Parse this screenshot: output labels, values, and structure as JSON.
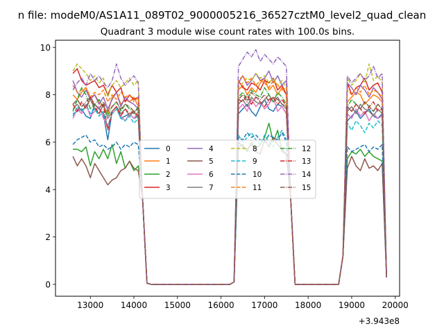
{
  "suptitle": "n file: modeM0/AS1A11_089T02_9000005216_36527cztM0_level2_quad_clean",
  "chart_data": {
    "type": "line",
    "title": "Quadrant 3 module wise count rates with 100.0s bins.",
    "xlabel": "",
    "ylabel": "",
    "x_offset_label": "+3.943e8",
    "xlim": [
      12200,
      20100
    ],
    "ylim": [
      -0.5,
      10.3
    ],
    "xticks": [
      13000,
      14000,
      15000,
      16000,
      17000,
      18000,
      19000,
      20000
    ],
    "xtick_labels": [
      "13000",
      "14000",
      "15000",
      "16000",
      "17000",
      "18000",
      "19000",
      "20000"
    ],
    "yticks": [
      0,
      2,
      4,
      6,
      8,
      10
    ],
    "ytick_labels": [
      "0",
      "2",
      "4",
      "6",
      "8",
      "10"
    ],
    "grid": false,
    "legend": {
      "placement": "center",
      "columns": 4
    },
    "segments": [
      {
        "x_start": 12600,
        "x_end": 14100
      },
      {
        "x_start": 16400,
        "x_end": 17500
      },
      {
        "x_start": 18900,
        "x_end": 19700
      }
    ],
    "gap_points": [
      14200,
      14300,
      14400,
      16200,
      16300,
      17600,
      17700,
      18700,
      18800,
      19800
    ],
    "gap_values": [
      3.6,
      0.05,
      0,
      0,
      0.1,
      3.6,
      0,
      0,
      1.2,
      0.3
    ],
    "series": [
      {
        "name": "0",
        "color": "#1f77b4",
        "dash": "solid",
        "values": [
          [
            7.2,
            7.3,
            7.4,
            7.1,
            7.0,
            7.6,
            7.4,
            7.2,
            6.1,
            7.3,
            7.5,
            7.0,
            7.1,
            7.2,
            7.0,
            7.1
          ],
          [
            7.2,
            7.4,
            7.6,
            7.3,
            7.1,
            7.5,
            7.8,
            7.4,
            7.3,
            7.6,
            7.5,
            7.2
          ],
          [
            6.9,
            7.1,
            7.3,
            7.0,
            7.2,
            7.4,
            7.1,
            7.0,
            7.2
          ]
        ]
      },
      {
        "name": "1",
        "color": "#ff7f0e",
        "dash": "solid",
        "values": [
          [
            8.0,
            7.8,
            8.1,
            8.3,
            7.9,
            8.0,
            7.7,
            7.5,
            7.2,
            7.9,
            8.1,
            7.6,
            7.8,
            7.7,
            7.9,
            7.5
          ],
          [
            8.2,
            8.4,
            8.0,
            8.3,
            8.1,
            8.5,
            8.7,
            8.2,
            8.4,
            8.0,
            8.3,
            8.0
          ],
          [
            7.7,
            7.9,
            8.1,
            8.0,
            7.6,
            7.8,
            8.0,
            7.9,
            7.7
          ]
        ]
      },
      {
        "name": "2",
        "color": "#2ca02c",
        "dash": "solid",
        "values": [
          [
            5.7,
            5.7,
            5.6,
            5.8,
            5.0,
            5.6,
            5.3,
            5.7,
            5.3,
            5.9,
            5.1,
            5.6,
            4.9,
            5.2,
            4.8,
            5.0
          ],
          [
            5.8,
            5.9,
            5.6,
            6.0,
            5.7,
            5.9,
            6.2,
            6.8,
            6.0,
            6.5,
            5.6,
            5.5
          ],
          [
            5.3,
            5.6,
            5.5,
            5.7,
            5.4,
            5.6,
            5.4,
            5.3,
            5.2
          ]
        ]
      },
      {
        "name": "3",
        "color": "#d62728",
        "dash": "solid",
        "values": [
          [
            8.9,
            9.1,
            8.6,
            8.4,
            8.5,
            8.6,
            8.3,
            8.4,
            8.0,
            8.4,
            8.1,
            8.3,
            7.7,
            8.0,
            7.8,
            7.9
          ],
          [
            8.6,
            8.3,
            8.2,
            8.5,
            8.4,
            8.2,
            8.6,
            8.5,
            8.7,
            8.2,
            8.4,
            8.0
          ],
          [
            8.5,
            8.0,
            8.3,
            8.4,
            8.7,
            8.2,
            8.4,
            8.5,
            8.1
          ]
        ]
      },
      {
        "name": "4",
        "color": "#9467bd",
        "dash": "solid",
        "values": [
          [
            8.6,
            8.1,
            7.9,
            8.2,
            7.8,
            8.0,
            7.6,
            7.9,
            7.4,
            7.8,
            8.1,
            7.5,
            7.9,
            7.7,
            7.6,
            7.4
          ],
          [
            8.5,
            8.8,
            8.4,
            8.6,
            8.9,
            8.6,
            8.7,
            9.0,
            8.5,
            8.8,
            8.4,
            8.6
          ],
          [
            8.5,
            8.3,
            8.0,
            8.4,
            8.2,
            7.9,
            8.3,
            8.1,
            7.8
          ]
        ]
      },
      {
        "name": "5",
        "color": "#8c564b",
        "dash": "solid",
        "values": [
          [
            5.4,
            5.0,
            5.3,
            5.0,
            4.5,
            5.1,
            4.8,
            4.5,
            4.2,
            4.4,
            4.5,
            4.8,
            4.9,
            5.2,
            4.9,
            4.8
          ],
          [
            6.0,
            5.8,
            5.7,
            5.9,
            5.6,
            5.5,
            6.1,
            5.8,
            6.2,
            5.9,
            5.7,
            5.5
          ],
          [
            4.9,
            5.4,
            5.0,
            4.8,
            5.3,
            4.9,
            5.0,
            4.8,
            5.1
          ]
        ]
      },
      {
        "name": "6",
        "color": "#e377c2",
        "dash": "solid",
        "values": [
          [
            7.0,
            7.4,
            7.2,
            7.6,
            7.1,
            7.3,
            7.5,
            7.0,
            6.7,
            7.2,
            7.4,
            7.1,
            6.9,
            7.2,
            7.0,
            7.3
          ],
          [
            7.4,
            7.6,
            7.3,
            7.8,
            7.5,
            7.7,
            7.4,
            7.6,
            7.9,
            7.3,
            7.5,
            7.2
          ],
          [
            7.2,
            7.0,
            7.4,
            7.1,
            7.3,
            6.9,
            7.2,
            7.0,
            7.1
          ]
        ]
      },
      {
        "name": "7",
        "color": "#7f7f7f",
        "dash": "solid",
        "values": [
          [
            7.4,
            7.6,
            7.3,
            7.5,
            7.8,
            7.4,
            7.2,
            7.6,
            7.0,
            7.3,
            7.5,
            7.2,
            7.4,
            7.1,
            7.3,
            7.0
          ],
          [
            7.6,
            7.8,
            7.5,
            7.9,
            7.7,
            7.6,
            7.8,
            8.0,
            7.7,
            7.9,
            7.6,
            7.4
          ],
          [
            7.3,
            7.5,
            7.2,
            7.6,
            7.4,
            7.3,
            7.1,
            7.4,
            7.2
          ]
        ]
      },
      {
        "name": "8",
        "color": "#bcbd22",
        "dash": "dashed",
        "values": [
          [
            9.0,
            9.3,
            9.1,
            8.9,
            8.6,
            8.8,
            8.5,
            8.7,
            7.9,
            8.4,
            8.6,
            8.3,
            8.5,
            8.7,
            8.4,
            8.6
          ],
          [
            8.3,
            8.5,
            8.7,
            8.6,
            8.9,
            8.7,
            8.8,
            8.5,
            8.7,
            8.4,
            8.6,
            8.3
          ],
          [
            8.7,
            8.4,
            8.6,
            8.9,
            8.5,
            9.3,
            8.6,
            8.8,
            8.5
          ]
        ]
      },
      {
        "name": "9",
        "color": "#17becf",
        "dash": "dashed",
        "values": [
          [
            7.1,
            7.5,
            7.3,
            7.6,
            7.2,
            7.4,
            7.1,
            7.3,
            6.6,
            7.2,
            7.4,
            7.0,
            6.9,
            7.1,
            6.8,
            7.0
          ],
          [
            6.3,
            6.0,
            6.2,
            6.4,
            6.1,
            5.9,
            6.3,
            6.0,
            5.8,
            6.2,
            6.5,
            6.1
          ],
          [
            6.8,
            6.5,
            6.9,
            6.7,
            6.4,
            6.8,
            6.6,
            6.9,
            6.7
          ]
        ]
      },
      {
        "name": "10",
        "color": "#1f77b4",
        "dash": "dashed",
        "values": [
          [
            5.9,
            6.1,
            6.2,
            6.3,
            6.0,
            6.1,
            5.8,
            5.9,
            5.7,
            5.8,
            6.0,
            5.7,
            5.9,
            5.8,
            6.0,
            5.9
          ],
          [
            6.2,
            6.1,
            6.4,
            6.2,
            6.3,
            6.1,
            6.0,
            6.3,
            6.2,
            6.1,
            6.4,
            6.0
          ],
          [
            5.8,
            5.6,
            5.7,
            5.8,
            5.9,
            5.6,
            5.8,
            5.7,
            5.9
          ]
        ]
      },
      {
        "name": "11",
        "color": "#ff7f0e",
        "dash": "dashed",
        "values": [
          [
            8.4,
            8.1,
            8.2,
            8.3,
            7.9,
            8.1,
            8.0,
            8.2,
            7.7,
            8.0,
            7.8,
            8.1,
            7.9,
            8.0,
            7.7,
            7.9
          ],
          [
            8.6,
            8.8,
            8.5,
            8.7,
            8.4,
            8.6,
            8.5,
            8.3,
            8.6,
            8.4,
            8.2,
            8.3
          ],
          [
            8.2,
            8.0,
            8.3,
            8.1,
            8.4,
            8.0,
            8.2,
            8.1,
            7.9
          ]
        ]
      },
      {
        "name": "12",
        "color": "#2ca02c",
        "dash": "dashdot",
        "values": [
          [
            7.3,
            7.8,
            8.3,
            8.0,
            7.4,
            7.6,
            7.8,
            7.5,
            7.1,
            7.5,
            7.7,
            7.3,
            7.6,
            7.4,
            7.2,
            7.5
          ],
          [
            7.9,
            8.1,
            7.8,
            8.2,
            8.0,
            7.9,
            8.3,
            8.0,
            7.7,
            8.1,
            7.9,
            7.6
          ],
          [
            7.5,
            7.8,
            7.6,
            7.4,
            7.7,
            7.5,
            7.3,
            7.6,
            7.4
          ]
        ]
      },
      {
        "name": "13",
        "color": "#d62728",
        "dash": "dashdot",
        "values": [
          [
            7.6,
            7.3,
            7.7,
            7.4,
            7.9,
            7.5,
            7.2,
            7.6,
            6.5,
            7.3,
            7.5,
            7.1,
            7.4,
            7.2,
            7.3,
            7.1
          ],
          [
            7.8,
            7.7,
            8.0,
            7.6,
            7.9,
            7.7,
            7.5,
            7.8,
            7.9,
            7.6,
            7.8,
            7.5
          ],
          [
            7.5,
            7.3,
            7.6,
            7.4,
            7.2,
            7.5,
            7.7,
            7.3,
            7.4
          ]
        ]
      },
      {
        "name": "14",
        "color": "#9467bd",
        "dash": "dashdot",
        "values": [
          [
            8.2,
            8.5,
            8.7,
            8.4,
            8.9,
            8.6,
            8.8,
            8.5,
            8.3,
            8.6,
            9.3,
            8.7,
            8.4,
            8.6,
            8.8,
            8.5
          ],
          [
            9.2,
            9.5,
            9.8,
            9.6,
            9.9,
            9.4,
            9.7,
            9.5,
            9.3,
            9.6,
            9.4,
            9.2
          ],
          [
            8.8,
            8.5,
            8.7,
            8.9,
            8.6,
            8.8,
            9.2,
            8.7,
            8.9
          ]
        ]
      },
      {
        "name": "15",
        "color": "#8c564b",
        "dash": "dashdot",
        "values": [
          [
            7.6,
            7.8,
            7.5,
            7.7,
            7.9,
            7.6,
            7.4,
            7.7,
            7.3,
            7.5,
            7.7,
            7.4,
            7.6,
            7.5,
            7.3,
            7.4
          ],
          [
            7.8,
            8.0,
            7.7,
            8.1,
            7.9,
            7.8,
            8.0,
            7.7,
            7.9,
            7.8,
            7.6,
            7.5
          ],
          [
            7.5,
            7.3,
            7.6,
            7.4,
            7.7,
            7.5,
            7.3,
            7.6,
            7.4
          ]
        ]
      }
    ]
  }
}
